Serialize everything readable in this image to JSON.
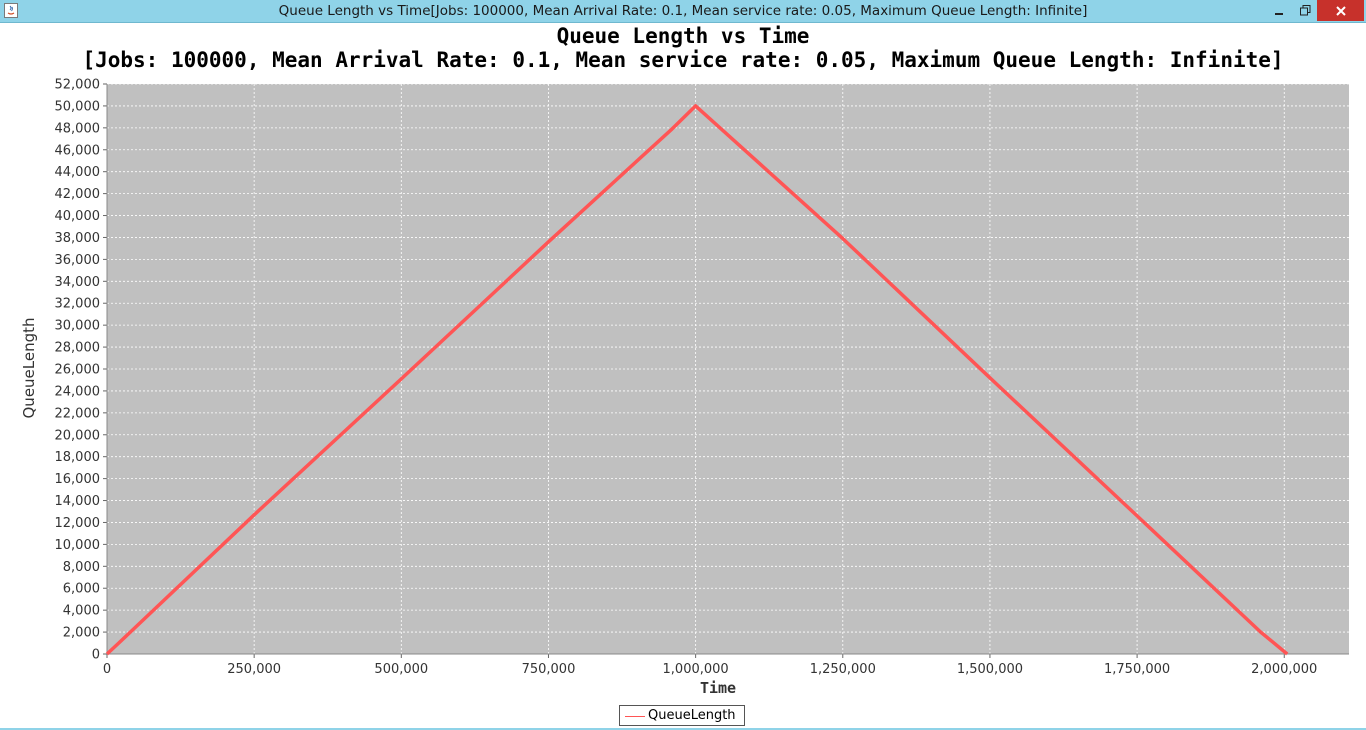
{
  "window": {
    "title": "Queue Length vs Time[Jobs: 100000, Mean Arrival Rate: 0.1, Mean service rate: 0.05, Maximum Queue Length: Infinite]",
    "app_icon": "java-icon",
    "controls": {
      "minimize": "minimize-icon",
      "maximize": "restore-icon",
      "close": "close-icon"
    }
  },
  "colors": {
    "titlebar": "#8fd3e8",
    "plot_background": "#c0c0c0",
    "series": "#ff5555",
    "close_button": "#c7312b"
  },
  "chart_data": {
    "type": "line",
    "title": "Queue Length vs Time",
    "subtitle": "[Jobs: 100000, Mean Arrival Rate: 0.1, Mean service rate: 0.05, Maximum Queue Length: Infinite]",
    "xlabel": "Time",
    "ylabel": "QueueLength",
    "xlim": [
      0,
      2110000
    ],
    "ylim": [
      0,
      52000
    ],
    "x_ticks": [
      0,
      250000,
      500000,
      750000,
      1000000,
      1250000,
      1500000,
      1750000,
      2000000
    ],
    "x_tick_labels": [
      "0",
      "250,000",
      "500,000",
      "750,000",
      "1,000,000",
      "1,250,000",
      "1,500,000",
      "1,750,000",
      "2,000,000"
    ],
    "y_ticks": [
      0,
      2000,
      4000,
      6000,
      8000,
      10000,
      12000,
      14000,
      16000,
      18000,
      20000,
      22000,
      24000,
      26000,
      28000,
      30000,
      32000,
      34000,
      36000,
      38000,
      40000,
      42000,
      44000,
      46000,
      48000,
      50000,
      52000
    ],
    "y_tick_labels": [
      "0",
      "2,000",
      "4,000",
      "6,000",
      "8,000",
      "10,000",
      "12,000",
      "14,000",
      "16,000",
      "18,000",
      "20,000",
      "22,000",
      "24,000",
      "26,000",
      "28,000",
      "30,000",
      "32,000",
      "34,000",
      "36,000",
      "38,000",
      "40,000",
      "42,000",
      "44,000",
      "46,000",
      "48,000",
      "50,000",
      "52,000"
    ],
    "grid": true,
    "legend_position": "bottom-center",
    "series": [
      {
        "name": "QueueLength",
        "color": "#ff5555",
        "x": [
          0,
          20000,
          250000,
          500000,
          750000,
          960000,
          1000000,
          1250000,
          1500000,
          1750000,
          1960000,
          2005000
        ],
        "y": [
          0,
          1000,
          12700,
          25100,
          37600,
          47900,
          50000,
          37900,
          25200,
          12600,
          2000,
          0
        ]
      }
    ]
  }
}
